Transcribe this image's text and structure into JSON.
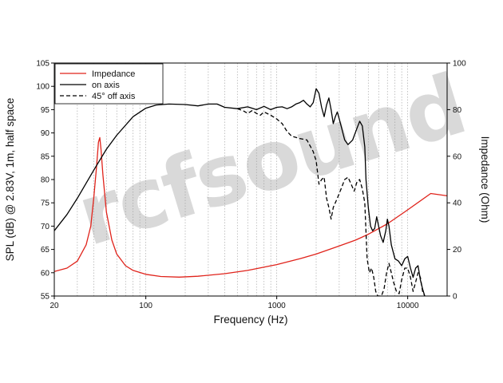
{
  "chart_data": {
    "type": "line",
    "xlabel": "Frequency (Hz)",
    "ylabel": "SPL (dB) @ 2.83V, 1m, half space",
    "y2label": "Impedance (Ohm)",
    "x_scale": "log",
    "xlim": [
      20,
      20000
    ],
    "ylim": [
      55,
      105
    ],
    "y2lim": [
      0,
      100
    ],
    "x_ticks": [
      "20",
      "100",
      "1000",
      "10000"
    ],
    "y_ticks": [
      "55",
      "60",
      "65",
      "70",
      "75",
      "80",
      "85",
      "90",
      "95",
      "100",
      "105"
    ],
    "y2_ticks": [
      "0",
      "20",
      "40",
      "60",
      "80",
      "100"
    ],
    "grid": "vertical dotted at log decades",
    "legend_position": "top-left",
    "watermark": "rcfsound",
    "series": [
      {
        "name": "Impedance",
        "axis": "right",
        "color": "#e0231b",
        "dash": "solid",
        "points": [
          [
            20,
            10.5
          ],
          [
            25,
            12
          ],
          [
            30,
            15
          ],
          [
            35,
            22
          ],
          [
            38,
            30
          ],
          [
            40,
            42
          ],
          [
            42,
            55
          ],
          [
            43.5,
            66
          ],
          [
            44.5,
            68
          ],
          [
            45.5,
            63
          ],
          [
            47,
            52
          ],
          [
            50,
            36
          ],
          [
            55,
            24
          ],
          [
            60,
            18
          ],
          [
            70,
            13
          ],
          [
            80,
            11
          ],
          [
            100,
            9.3
          ],
          [
            130,
            8.4
          ],
          [
            180,
            8.1
          ],
          [
            250,
            8.5
          ],
          [
            400,
            9.6
          ],
          [
            600,
            11
          ],
          [
            1000,
            13.5
          ],
          [
            1500,
            16
          ],
          [
            2000,
            18
          ],
          [
            3000,
            21.5
          ],
          [
            4000,
            24
          ],
          [
            5000,
            26.5
          ],
          [
            7000,
            31
          ],
          [
            10000,
            37
          ],
          [
            15000,
            44
          ],
          [
            20000,
            43
          ]
        ]
      },
      {
        "name": "on axis",
        "axis": "left",
        "color": "#000000",
        "dash": "solid",
        "points": [
          [
            20,
            69
          ],
          [
            25,
            72.5
          ],
          [
            30,
            76
          ],
          [
            40,
            82
          ],
          [
            50,
            86.5
          ],
          [
            60,
            89.5
          ],
          [
            80,
            93.5
          ],
          [
            100,
            95.3
          ],
          [
            120,
            96
          ],
          [
            150,
            96.2
          ],
          [
            200,
            96.1
          ],
          [
            250,
            95.8
          ],
          [
            300,
            96.2
          ],
          [
            350,
            96.2
          ],
          [
            400,
            95.5
          ],
          [
            500,
            95.2
          ],
          [
            600,
            95.6
          ],
          [
            700,
            95
          ],
          [
            800,
            95.7
          ],
          [
            900,
            95
          ],
          [
            1000,
            95.5
          ],
          [
            1100,
            95.6
          ],
          [
            1200,
            95.2
          ],
          [
            1300,
            95.6
          ],
          [
            1400,
            96.2
          ],
          [
            1500,
            96.5
          ],
          [
            1600,
            97
          ],
          [
            1700,
            96.2
          ],
          [
            1800,
            95.6
          ],
          [
            1900,
            96.5
          ],
          [
            2000,
            99.5
          ],
          [
            2100,
            98.5
          ],
          [
            2200,
            95.5
          ],
          [
            2300,
            93.5
          ],
          [
            2400,
            96
          ],
          [
            2500,
            97.5
          ],
          [
            2600,
            95
          ],
          [
            2700,
            92
          ],
          [
            2800,
            93.5
          ],
          [
            2900,
            94.5
          ],
          [
            3000,
            93
          ],
          [
            3100,
            91.5
          ],
          [
            3300,
            88.5
          ],
          [
            3500,
            87.5
          ],
          [
            3800,
            88.5
          ],
          [
            4100,
            91
          ],
          [
            4300,
            92.5
          ],
          [
            4500,
            91.5
          ],
          [
            4700,
            87
          ],
          [
            4800,
            80
          ],
          [
            5000,
            74
          ],
          [
            5200,
            70
          ],
          [
            5400,
            69
          ],
          [
            5600,
            69.5
          ],
          [
            5800,
            72
          ],
          [
            6000,
            70
          ],
          [
            6200,
            68
          ],
          [
            6500,
            66.5
          ],
          [
            6800,
            69
          ],
          [
            7000,
            71.5
          ],
          [
            7200,
            70
          ],
          [
            7500,
            66
          ],
          [
            8000,
            63
          ],
          [
            8500,
            62.5
          ],
          [
            9000,
            61.5
          ],
          [
            9500,
            63
          ],
          [
            10000,
            63.5
          ],
          [
            10500,
            61
          ],
          [
            11000,
            59
          ],
          [
            11500,
            61
          ],
          [
            12000,
            61.5
          ],
          [
            12500,
            58.5
          ],
          [
            13000,
            56.5
          ],
          [
            13500,
            55
          ]
        ]
      },
      {
        "name": "45° off axis",
        "axis": "left",
        "color": "#000000",
        "dash": "dashed",
        "points": [
          [
            500,
            95.2
          ],
          [
            550,
            94.8
          ],
          [
            600,
            94.2
          ],
          [
            650,
            94.8
          ],
          [
            700,
            94.2
          ],
          [
            750,
            93.8
          ],
          [
            800,
            94.5
          ],
          [
            900,
            93.8
          ],
          [
            1000,
            93
          ],
          [
            1100,
            92
          ],
          [
            1200,
            90.3
          ],
          [
            1300,
            89.3
          ],
          [
            1500,
            88.8
          ],
          [
            1700,
            88.5
          ],
          [
            1900,
            86
          ],
          [
            2000,
            84
          ],
          [
            2100,
            79
          ],
          [
            2200,
            80
          ],
          [
            2300,
            80.5
          ],
          [
            2400,
            76
          ],
          [
            2500,
            74
          ],
          [
            2600,
            71.5
          ],
          [
            2700,
            74
          ],
          [
            2900,
            76
          ],
          [
            3100,
            78
          ],
          [
            3300,
            80
          ],
          [
            3500,
            80.5
          ],
          [
            3700,
            79
          ],
          [
            3900,
            77.5
          ],
          [
            4100,
            79.5
          ],
          [
            4300,
            80
          ],
          [
            4500,
            78
          ],
          [
            4700,
            75
          ],
          [
            4900,
            63
          ],
          [
            5100,
            60
          ],
          [
            5300,
            61
          ],
          [
            5500,
            59
          ],
          [
            5700,
            56
          ],
          [
            5900,
            55
          ],
          [
            6300,
            55
          ],
          [
            6600,
            56.5
          ],
          [
            6900,
            60
          ],
          [
            7200,
            62
          ],
          [
            7500,
            60
          ],
          [
            7800,
            58
          ],
          [
            8200,
            56
          ],
          [
            8600,
            55.5
          ],
          [
            9000,
            58.5
          ],
          [
            9500,
            61
          ],
          [
            10000,
            61
          ],
          [
            10500,
            59
          ],
          [
            11000,
            56
          ],
          [
            11500,
            58
          ],
          [
            12000,
            60
          ],
          [
            12500,
            59
          ],
          [
            13000,
            56
          ],
          [
            13500,
            55
          ]
        ]
      }
    ]
  }
}
